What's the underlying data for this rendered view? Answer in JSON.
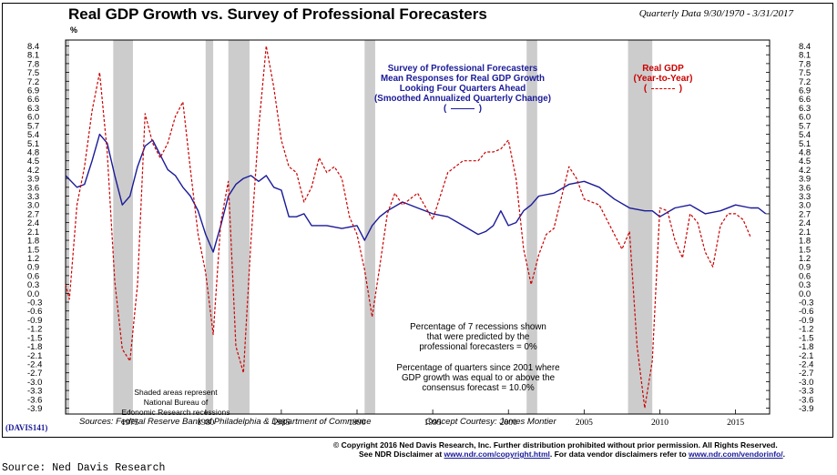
{
  "header": {
    "title": "Real GDP Growth vs. Survey of Professional Forecasters",
    "period": "Quarterly Data 9/30/1970 - 3/31/2017",
    "unit_mark": "%"
  },
  "labels": {
    "spf_line1": "Survey of Professional Forecasters",
    "spf_line2": "Mean Responses for Real GDP Growth",
    "spf_line3": "Looking Four Quarters Ahead",
    "spf_line4": "(Smoothed Annualized Quarterly Change)",
    "spf_legend_open": "(",
    "spf_legend_close": ")",
    "gdp_line1": "Real GDP",
    "gdp_line2": "(Year-to-Year)",
    "gdp_legend_open": "(",
    "gdp_legend_close": ")",
    "note1_line1": "Percentage of 7 recessions shown",
    "note1_line2": "that were predicted by the",
    "note1_line3": "professional forecasters = 0%",
    "note2_line1": "Percentage of quarters since 2001 where",
    "note2_line2": "GDP growth was equal to or above the",
    "note2_line3": "consensus forecast = 10.0%",
    "shade_line1": "Shaded areas represent",
    "shade_line2": "National Bureau of",
    "shade_line3": "Economic Research recessions"
  },
  "footer": {
    "sources": "Sources: Federal Reserve Bank of Philadelphia & Department of Commerce",
    "concept": "Concept Courtesy: James Montier",
    "badge": "DAVIS141",
    "copyright": "© Copyright 2016 Ned Davis Research, Inc. Further distribution prohibited without prior permission. All Rights Reserved.",
    "disclaimer_prefix": "See NDR Disclaimer at ",
    "disclaimer_link1": "www.ndr.com/copyright.html",
    "disclaimer_mid": ". For data vendor disclaimers refer to ",
    "disclaimer_link2": "www.ndr.com/vendorinfo/",
    "disclaimer_suffix": ".",
    "source_caption": "Source: Ned Davis Research"
  },
  "colors": {
    "spf": "#1a1a99",
    "gdp": "#cc0000",
    "recession": "#cccccc"
  },
  "chart_data": {
    "type": "line",
    "title": "Real GDP Growth vs. Survey of Professional Forecasters",
    "ylabel": "%",
    "ylim": [
      -4.1,
      8.6
    ],
    "xlim": [
      1970.75,
      2017.25
    ],
    "yticks": [
      "8.4",
      "8.1",
      "7.8",
      "7.5",
      "7.2",
      "6.9",
      "6.6",
      "6.3",
      "6.0",
      "5.7",
      "5.4",
      "5.1",
      "4.8",
      "4.5",
      "4.2",
      "3.9",
      "3.6",
      "3.3",
      "3.0",
      "2.7",
      "2.4",
      "2.1",
      "1.8",
      "1.5",
      "1.2",
      "0.9",
      "0.6",
      "0.3",
      "0.0",
      "-0.3",
      "-0.6",
      "-0.9",
      "-1.2",
      "-1.5",
      "-1.8",
      "-2.1",
      "-2.4",
      "-2.7",
      "-3.0",
      "-3.3",
      "-3.6",
      "-3.9"
    ],
    "xticks": [
      "1975",
      "1980",
      "1985",
      "1990",
      "1995",
      "2000",
      "2005",
      "2010",
      "2015"
    ],
    "recessions": [
      [
        1970.75,
        1970.9
      ],
      [
        1973.9,
        1975.2
      ],
      [
        1980.0,
        1980.5
      ],
      [
        1981.5,
        1982.9
      ],
      [
        1990.5,
        1991.2
      ],
      [
        2001.2,
        2001.9
      ],
      [
        2007.9,
        2009.5
      ]
    ],
    "series": [
      {
        "name": "Survey of Professional Forecasters",
        "style": "solid",
        "x": [
          1970.75,
          1971.5,
          1972,
          1972.5,
          1973,
          1973.5,
          1974,
          1974.5,
          1975,
          1975.5,
          1976,
          1976.5,
          1977,
          1977.5,
          1978,
          1978.5,
          1979,
          1979.5,
          1980,
          1980.5,
          1981,
          1981.5,
          1982,
          1982.5,
          1983,
          1983.5,
          1984,
          1984.5,
          1985,
          1985.5,
          1986,
          1986.5,
          1987,
          1988,
          1989,
          1990,
          1990.5,
          1991,
          1991.5,
          1992,
          1993,
          1994,
          1995,
          1996,
          1997,
          1998,
          1998.5,
          1999,
          1999.5,
          2000,
          2000.5,
          2001,
          2001.5,
          2002,
          2003,
          2004,
          2005,
          2006,
          2007,
          2008,
          2009,
          2009.5,
          2010,
          2011,
          2012,
          2013,
          2014,
          2015,
          2016,
          2016.5,
          2017
        ],
        "y": [
          4.0,
          3.6,
          3.7,
          4.5,
          5.4,
          5.1,
          4.0,
          3.0,
          3.3,
          4.3,
          5.0,
          5.2,
          4.7,
          4.2,
          4.0,
          3.6,
          3.3,
          2.8,
          2.0,
          1.4,
          2.3,
          3.3,
          3.7,
          3.9,
          4.0,
          3.8,
          4.0,
          3.6,
          3.5,
          2.6,
          2.6,
          2.7,
          2.3,
          2.3,
          2.2,
          2.3,
          1.8,
          2.3,
          2.6,
          2.8,
          3.1,
          2.9,
          2.7,
          2.6,
          2.3,
          2.0,
          2.1,
          2.3,
          2.8,
          2.3,
          2.4,
          2.8,
          3.0,
          3.3,
          3.4,
          3.7,
          3.8,
          3.6,
          3.2,
          2.9,
          2.8,
          2.8,
          2.6,
          2.9,
          3.0,
          2.7,
          2.8,
          3.0,
          2.9,
          2.9,
          2.7
        ]
      },
      {
        "name": "Real GDP",
        "style": "dashed",
        "x": [
          1970.75,
          1971,
          1971.5,
          1972,
          1972.5,
          1973,
          1973.5,
          1974,
          1974.5,
          1975,
          1975.5,
          1976,
          1976.5,
          1977,
          1977.5,
          1978,
          1978.5,
          1979,
          1979.5,
          1980,
          1980.5,
          1981,
          1981.5,
          1982,
          1982.5,
          1983,
          1983.5,
          1984,
          1984.5,
          1985,
          1985.5,
          1986,
          1986.5,
          1987,
          1987.5,
          1988,
          1988.5,
          1989,
          1989.5,
          1990,
          1990.5,
          1991,
          1991.5,
          1992,
          1992.5,
          1993,
          1994,
          1995,
          1996,
          1997,
          1998,
          1998.5,
          1999,
          1999.5,
          2000,
          2000.5,
          2001,
          2001.5,
          2002,
          2002.5,
          2003,
          2004,
          2004.5,
          2005,
          2006,
          2007,
          2007.5,
          2008,
          2008.5,
          2009,
          2009.5,
          2010,
          2010.5,
          2011,
          2011.5,
          2012,
          2012.5,
          2013,
          2013.5,
          2014,
          2014.5,
          2015,
          2015.5,
          2016
        ],
        "y": [
          0.3,
          -0.2,
          3.0,
          4.3,
          6.2,
          7.5,
          4.8,
          0.4,
          -1.9,
          -2.3,
          0.3,
          6.1,
          5.1,
          4.6,
          5.1,
          6.0,
          6.5,
          4.2,
          2.0,
          0.7,
          -1.4,
          2.4,
          3.8,
          -1.8,
          -2.7,
          1.8,
          5.6,
          8.4,
          7.0,
          5.2,
          4.3,
          4.1,
          3.1,
          3.6,
          4.6,
          4.1,
          4.3,
          3.9,
          2.6,
          2.0,
          0.8,
          -0.8,
          0.9,
          2.7,
          3.4,
          3.0,
          3.4,
          2.5,
          4.1,
          4.5,
          4.5,
          4.8,
          4.8,
          4.9,
          5.2,
          3.9,
          1.5,
          0.3,
          1.3,
          2.0,
          2.2,
          4.3,
          3.9,
          3.2,
          3.0,
          2.0,
          1.5,
          2.1,
          -1.8,
          -3.9,
          -2.3,
          2.9,
          2.8,
          1.8,
          1.2,
          2.7,
          2.4,
          1.4,
          0.9,
          2.3,
          2.7,
          2.7,
          2.5,
          1.9
        ]
      }
    ]
  }
}
